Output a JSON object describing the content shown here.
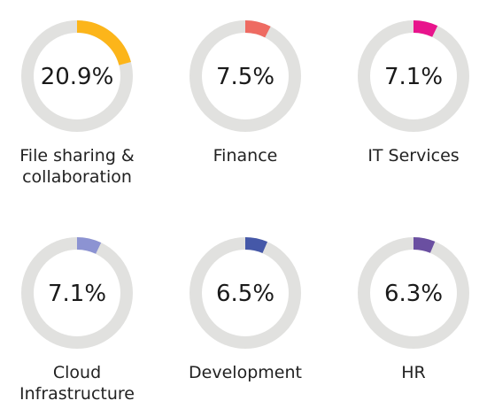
{
  "chart_data": {
    "type": "pie",
    "track_color": "#e1e1df",
    "items": [
      {
        "label": "File sharing & collaboration",
        "value": 20.9,
        "display": "20.9%",
        "color": "#fcb51a"
      },
      {
        "label": "Finance",
        "value": 7.5,
        "display": "7.5%",
        "color": "#ee6b62"
      },
      {
        "label": "IT Services",
        "value": 7.1,
        "display": "7.1%",
        "color": "#e8148c"
      },
      {
        "label": "Cloud Infrastructure",
        "value": 7.1,
        "display": "7.1%",
        "color": "#8c93d2"
      },
      {
        "label": "Development",
        "value": 6.5,
        "display": "6.5%",
        "color": "#4558a8"
      },
      {
        "label": "HR",
        "value": 6.3,
        "display": "6.3%",
        "color": "#6a4fa1"
      }
    ]
  }
}
